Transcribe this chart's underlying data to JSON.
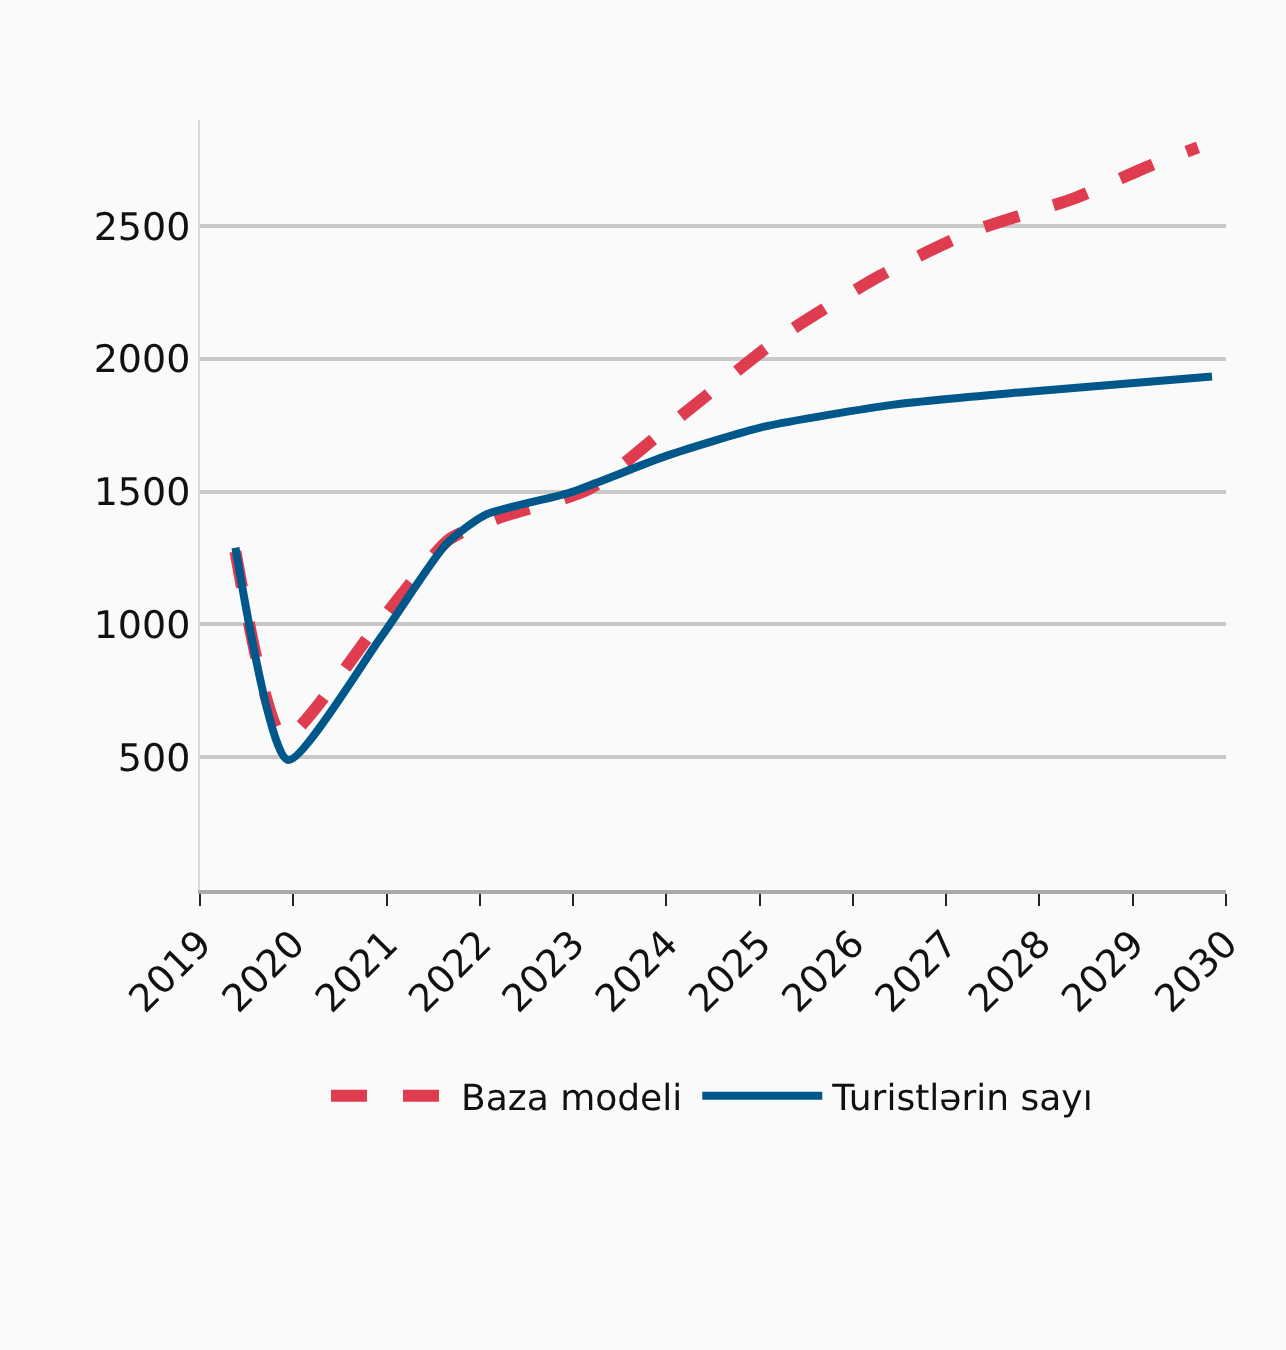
{
  "chart_data": {
    "type": "line",
    "xlim": [
      2019,
      2030
    ],
    "xticks": [
      2019,
      2020,
      2021,
      2022,
      2023,
      2024,
      2025,
      2026,
      2027,
      2028,
      2029,
      2030
    ],
    "ylim": [
      0,
      2900
    ],
    "yticks": [
      500,
      1000,
      1500,
      2000,
      2500
    ],
    "grid": "y",
    "legend": "bottom",
    "series": [
      {
        "name": "Baza modeli",
        "color": "#e03c50",
        "line_style": "dashed",
        "x": [
          2019.38,
          2019.9,
          2020.88,
          2021.67,
          2022.19,
          2023.17,
          2024.21,
          2025.26,
          2026.3,
          2027.27,
          2028.38,
          2029.2,
          2029.7
        ],
        "values": [
          1275,
          573,
          988,
          1320,
          1400,
          1510,
          1800,
          2091,
          2315,
          2479,
          2606,
          2730,
          2797
        ]
      },
      {
        "name": "Turistlərin sayı",
        "color": "#00578a",
        "line_style": "solid",
        "x": [
          2019.38,
          2019.94,
          2020.95,
          2021.64,
          2022.06,
          2022.96,
          2024.0,
          2025.05,
          2026.44,
          2027.82,
          2029.85
        ],
        "values": [
          1289,
          490,
          957,
          1303,
          1413,
          1496,
          1635,
          1745,
          1828,
          1875,
          1934
        ]
      }
    ]
  }
}
